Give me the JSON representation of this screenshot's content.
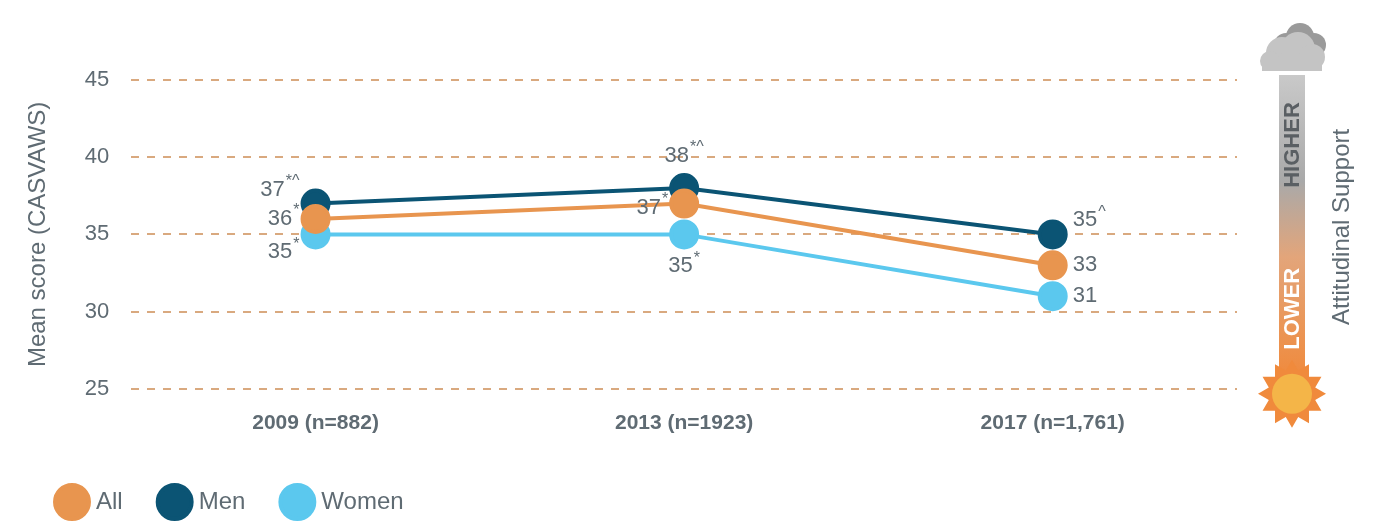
{
  "chart_data": {
    "type": "line",
    "y_label": "Mean score (CASVAWS)",
    "categories": [
      "2009 (n=882)",
      "2013 (n=1923)",
      "2017 (n=1,761)"
    ],
    "series": [
      {
        "name": "All",
        "color": "#E8954F",
        "values": [
          36,
          37,
          33
        ],
        "value_labels": [
          "36*",
          "37*",
          "33"
        ]
      },
      {
        "name": "Men",
        "color": "#0B5474",
        "values": [
          37,
          38,
          35
        ],
        "value_labels": [
          "37*^",
          "38*^",
          "35^"
        ]
      },
      {
        "name": "Women",
        "color": "#5BC8EE",
        "values": [
          35,
          35,
          31
        ],
        "value_labels": [
          "35*",
          "35*",
          "31"
        ]
      }
    ],
    "ylim": [
      25,
      45
    ],
    "yticks": [
      25,
      30,
      35,
      40,
      45
    ],
    "grid": true,
    "legend": "bottom",
    "data_labels": true,
    "marker": "circle",
    "annotations": [
      "HIGHER",
      "LOWER",
      "Attitudinal Support"
    ]
  }
}
